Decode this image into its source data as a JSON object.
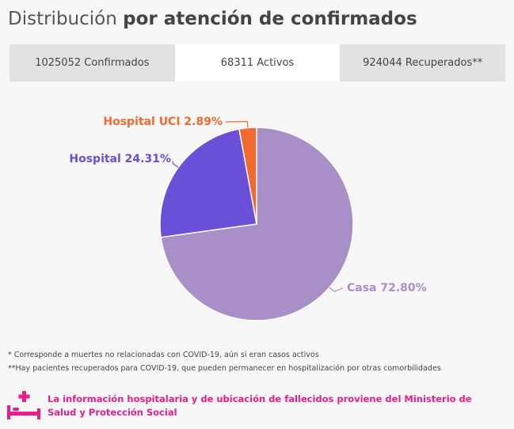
{
  "header": {
    "title_regular": "Distribución",
    "title_bold": "por atención de confirmados"
  },
  "tabs": [
    {
      "label": "1025052 Confirmados",
      "active": false
    },
    {
      "label": "68311 Activos",
      "active": true
    },
    {
      "label": "924044 Recuperados**",
      "active": false
    }
  ],
  "chart_data": {
    "type": "pie",
    "title": "",
    "slices": [
      {
        "label": "Casa",
        "value": 72.8,
        "display": "Casa 72.80%",
        "color": "#a98fc8"
      },
      {
        "label": "Hospital",
        "value": 24.31,
        "display": "Hospital 24.31%",
        "color": "#6b4fd8"
      },
      {
        "label": "Hospital UCI",
        "value": 2.89,
        "display": "Hospital UCI 2.89%",
        "color": "#f26a2e"
      }
    ],
    "start_position": "top",
    "direction": "clockwise"
  },
  "footnotes": {
    "note1": "* Corresponde a muertes no relacionadas con COVID-19, aún si eran casos activos",
    "note2": "**Hay pacientes recuperados para COVID-19, que pueden permanecer en hospitalización por otras comorbilidades"
  },
  "notice": {
    "icon": "hospital-bed-icon",
    "color": "#e61f8c",
    "text": "La información hospitalaria y de ubicación de fallecidos proviene del Ministerio de Salud y Protección Social"
  }
}
